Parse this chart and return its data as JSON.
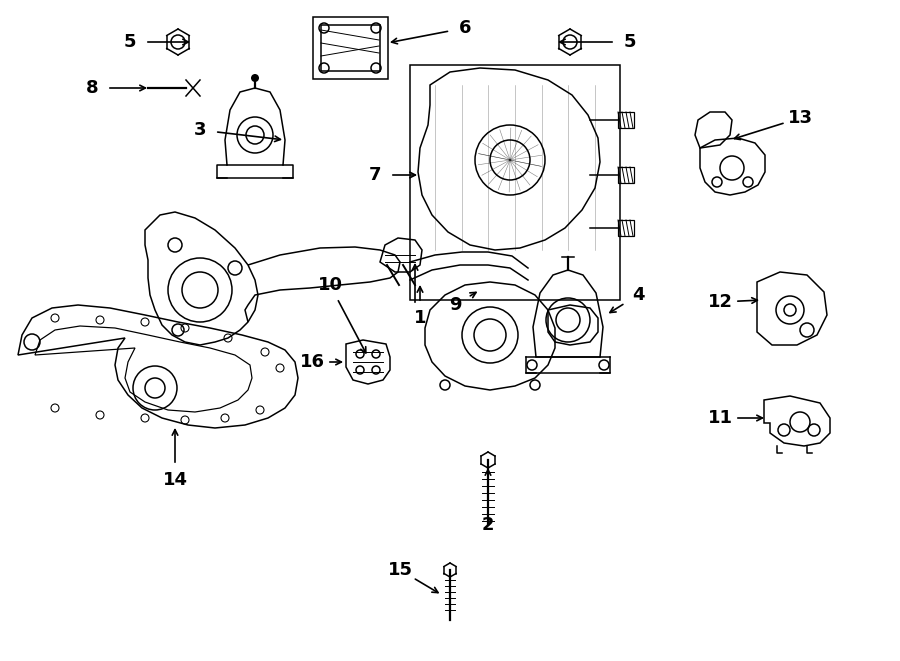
{
  "bg_color": "#ffffff",
  "line_color": "#000000",
  "fig_width": 9.0,
  "fig_height": 6.61,
  "dpi": 100,
  "label_fontsize": 13,
  "lw": 1.1
}
